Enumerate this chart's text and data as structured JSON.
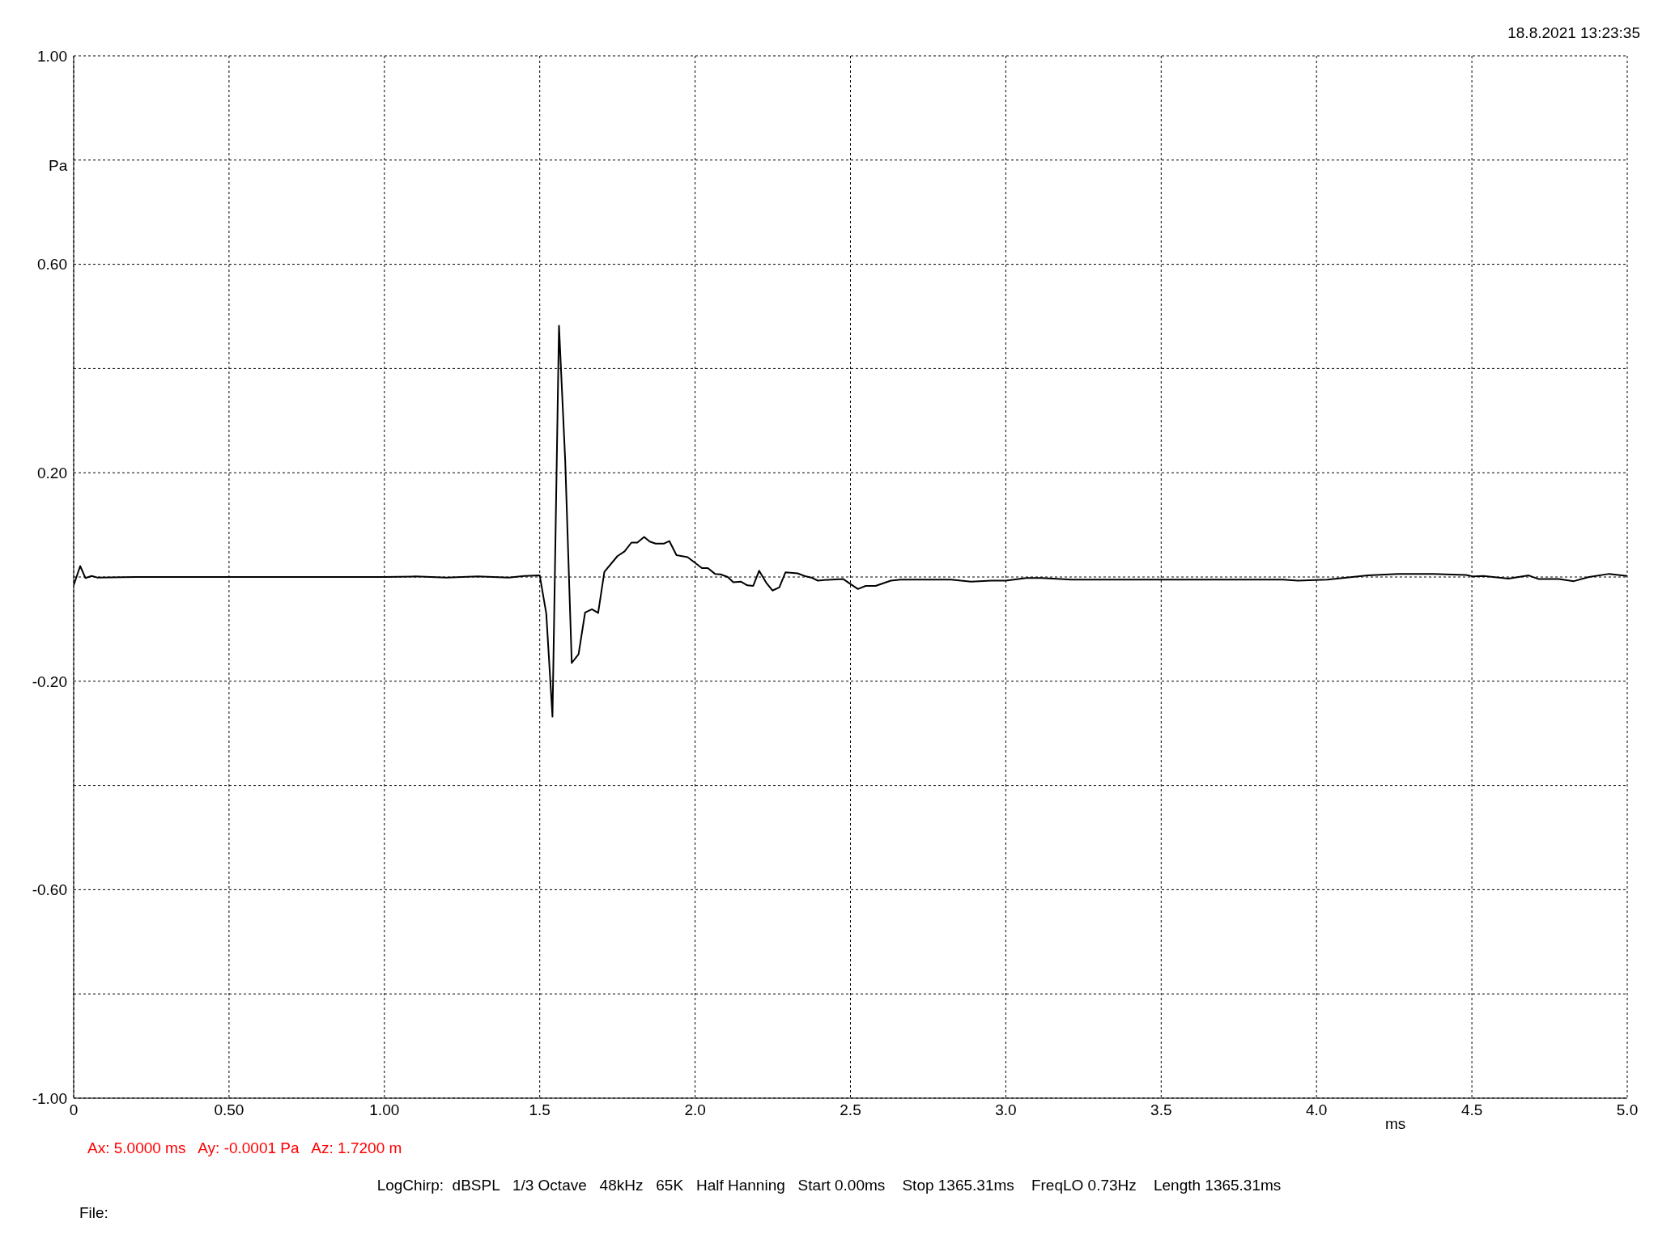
{
  "chart_data": {
    "type": "line",
    "ylabel": "Pa",
    "xlabel": "ms",
    "x": [
      0,
      0.021,
      0.038,
      0.058,
      0.076,
      0.2,
      1.0,
      1.1,
      1.2,
      1.3,
      1.4,
      1.45,
      1.5,
      1.521,
      1.541,
      1.549,
      1.562,
      1.582,
      1.595,
      1.603,
      1.625,
      1.646,
      1.668,
      1.688,
      1.708,
      1.75,
      1.773,
      1.795,
      1.814,
      1.836,
      1.854,
      1.873,
      1.899,
      1.917,
      1.94,
      1.976,
      2.022,
      2.041,
      2.064,
      2.082,
      2.105,
      2.123,
      2.148,
      2.168,
      2.187,
      2.206,
      2.229,
      2.249,
      2.271,
      2.291,
      2.33,
      2.357,
      2.374,
      2.395,
      2.415,
      2.477,
      2.499,
      2.524,
      2.549,
      2.581,
      2.63,
      2.662,
      2.824,
      2.888,
      2.953,
      3.0,
      3.066,
      3.115,
      3.212,
      3.681,
      3.892,
      3.94,
      4.035,
      4.165,
      4.262,
      4.375,
      4.481,
      4.505,
      4.537,
      4.618,
      4.683,
      4.715,
      4.78,
      4.828,
      4.877,
      4.942,
      5.0
    ],
    "series": [
      {
        "color": "#000000",
        "values": [
          -0.016,
          0.021,
          -0.002,
          0.002,
          -0.001,
          0,
          0,
          0.001,
          -0.001,
          0.001,
          -0.001,
          0.002,
          0.003,
          -0.07,
          -0.268,
          0.015,
          0.482,
          0.223,
          -0.017,
          -0.165,
          -0.148,
          -0.068,
          -0.062,
          -0.069,
          0.01,
          0.04,
          0.049,
          0.066,
          0.066,
          0.077,
          0.068,
          0.064,
          0.064,
          0.069,
          0.042,
          0.038,
          0.017,
          0.017,
          0.006,
          0.005,
          0,
          -0.01,
          -0.009,
          -0.016,
          -0.017,
          0.012,
          -0.011,
          -0.026,
          -0.02,
          0.009,
          0.007,
          0.001,
          -0.001,
          -0.007,
          -0.006,
          -0.004,
          -0.013,
          -0.023,
          -0.017,
          -0.017,
          -0.007,
          -0.005,
          -0.005,
          -0.009,
          -0.007,
          -0.007,
          -0.002,
          -0.002,
          -0.005,
          -0.005,
          -0.005,
          -0.007,
          -0.005,
          0.003,
          0.006,
          0.006,
          0.004,
          0.001,
          0.002,
          -0.003,
          0.003,
          -0.004,
          -0.004,
          -0.008,
          0,
          0.006,
          0.002
        ]
      }
    ],
    "xlim": [
      0,
      5
    ],
    "xticks": [
      0,
      {
        "value": 0.5,
        "label": "0.50"
      },
      {
        "value": 1,
        "label": "1.00"
      },
      1.5,
      {
        "value": 2,
        "label": "2.0"
      },
      2.5,
      {
        "value": 3,
        "label": "3.0"
      },
      3.5,
      {
        "value": 4,
        "label": "4.0"
      },
      4.5,
      {
        "value": 5,
        "label": "5.0"
      }
    ],
    "ylim": [
      -1,
      1
    ],
    "yticks": [
      {
        "value": -1,
        "label": "-1.00"
      },
      {
        "value": -0.8,
        "label": null
      },
      {
        "value": -0.6,
        "label": "-0.60"
      },
      {
        "value": -0.4,
        "label": null
      },
      {
        "value": -0.2,
        "label": "-0.20"
      },
      {
        "value": 0,
        "label": null
      },
      {
        "value": 0.2,
        "label": "0.20"
      },
      {
        "value": 0.4,
        "label": null
      },
      {
        "value": 0.6,
        "label": "0.60"
      },
      {
        "value": 0.8,
        "label": null
      },
      {
        "value": 1,
        "label": "1.00"
      }
    ],
    "grid": true,
    "line_style": "solid",
    "marker": "none",
    "annotations": [
      "18.8.2021 13:23:35",
      "Ax: 5.0000 ms   Ay: -0.0001 Pa   Az: 1.7200 m",
      "LogChirp:  dBSPL   1/3 Octave   48kHz   65K   Half Hanning   Start 0.00ms    Stop 1365.31ms    FreqLO 0.73Hz    Length 1365.31ms",
      "File:"
    ]
  }
}
